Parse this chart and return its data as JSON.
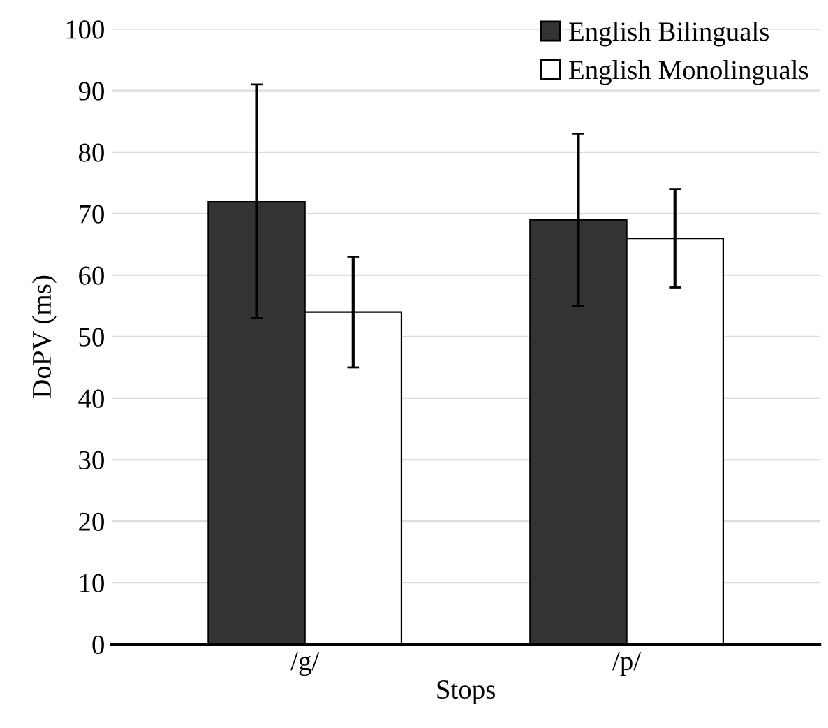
{
  "chart_data": {
    "type": "bar",
    "xlabel": "Stops",
    "ylabel": "DoPV (ms)",
    "categories": [
      "/g/",
      "/p/"
    ],
    "series": [
      {
        "name": "English Bilinguals",
        "color": "#333333",
        "values": [
          72,
          69
        ],
        "errors": [
          [
            53,
            91
          ],
          [
            55,
            83
          ]
        ]
      },
      {
        "name": "English Monolinguals",
        "color": "#ffffff",
        "values": [
          54,
          66
        ],
        "errors": [
          [
            45,
            63
          ],
          [
            58,
            74
          ]
        ]
      }
    ],
    "ylim": [
      0,
      100
    ],
    "yticks": [
      0,
      10,
      20,
      30,
      40,
      50,
      60,
      70,
      80,
      90,
      100
    ],
    "grid": "y",
    "legend": "top right"
  }
}
